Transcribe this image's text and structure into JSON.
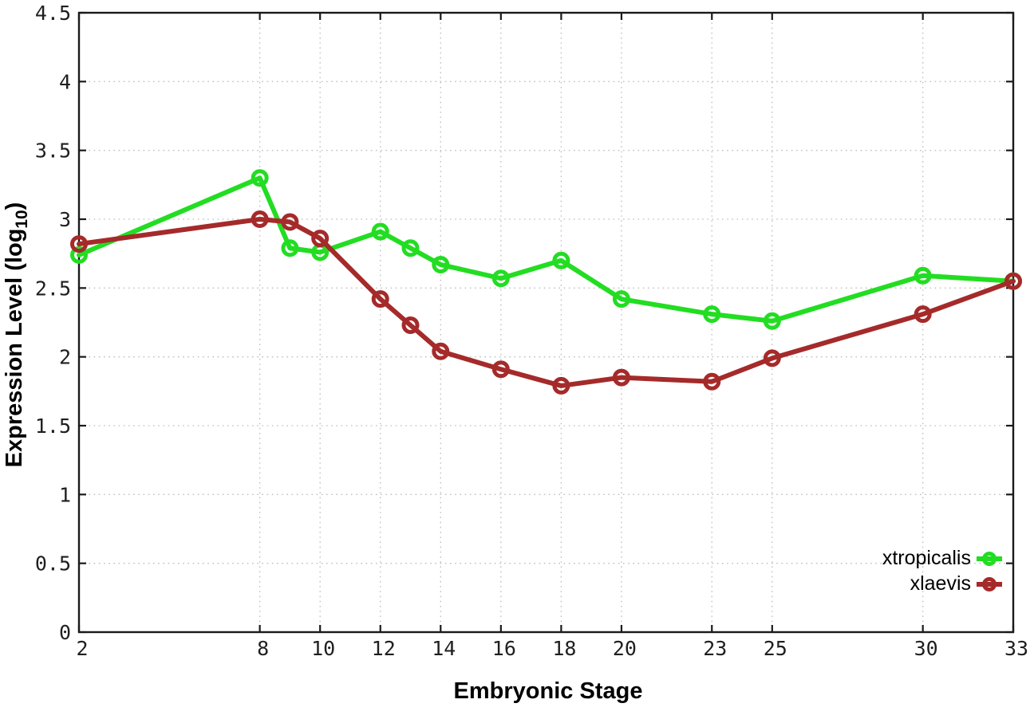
{
  "chart_data": {
    "type": "line",
    "title": "",
    "xlabel": "Embryonic Stage",
    "ylabel": "Expression Level (log10)",
    "xlim": [
      2,
      33
    ],
    "ylim": [
      0,
      4.5
    ],
    "grid": true,
    "legend_position": "bottom-right",
    "x": [
      2,
      8,
      9,
      10,
      12,
      13,
      14,
      16,
      18,
      20,
      23,
      25,
      30,
      33
    ],
    "series": [
      {
        "name": "xtropicalis",
        "color": "#22dd22",
        "values": [
          2.74,
          3.3,
          2.79,
          2.76,
          2.91,
          2.79,
          2.67,
          2.57,
          2.7,
          2.42,
          2.31,
          2.26,
          2.59,
          2.55
        ]
      },
      {
        "name": "xlaevis",
        "color": "#a52a2a",
        "values": [
          2.82,
          3.0,
          2.98,
          2.86,
          2.42,
          2.23,
          2.04,
          1.91,
          1.79,
          1.85,
          1.82,
          1.99,
          2.31,
          2.55
        ]
      }
    ],
    "x_ticks": [
      2,
      8,
      10,
      12,
      14,
      16,
      18,
      20,
      23,
      25,
      30,
      33
    ],
    "x_tick_labels": [
      "2",
      "8",
      "10",
      "12",
      "14",
      "16",
      "18",
      "20",
      "23",
      "25",
      "30",
      "33"
    ],
    "y_ticks": [
      0,
      0.5,
      1,
      1.5,
      2,
      2.5,
      3,
      3.5,
      4,
      4.5
    ],
    "y_tick_labels": [
      "0",
      "0.5",
      "1",
      "1.5",
      "2",
      "2.5",
      "3",
      "3.5",
      "4",
      "4.5"
    ]
  },
  "labels": {
    "ylabel_main": "Expression Level (log",
    "ylabel_sub": "10",
    "ylabel_close": ")",
    "xlabel": "Embryonic Stage"
  },
  "style_colors": {
    "axis": "#1a1a1a",
    "grid": "#bdbdbd",
    "tick_text": "#1f1f1f"
  }
}
